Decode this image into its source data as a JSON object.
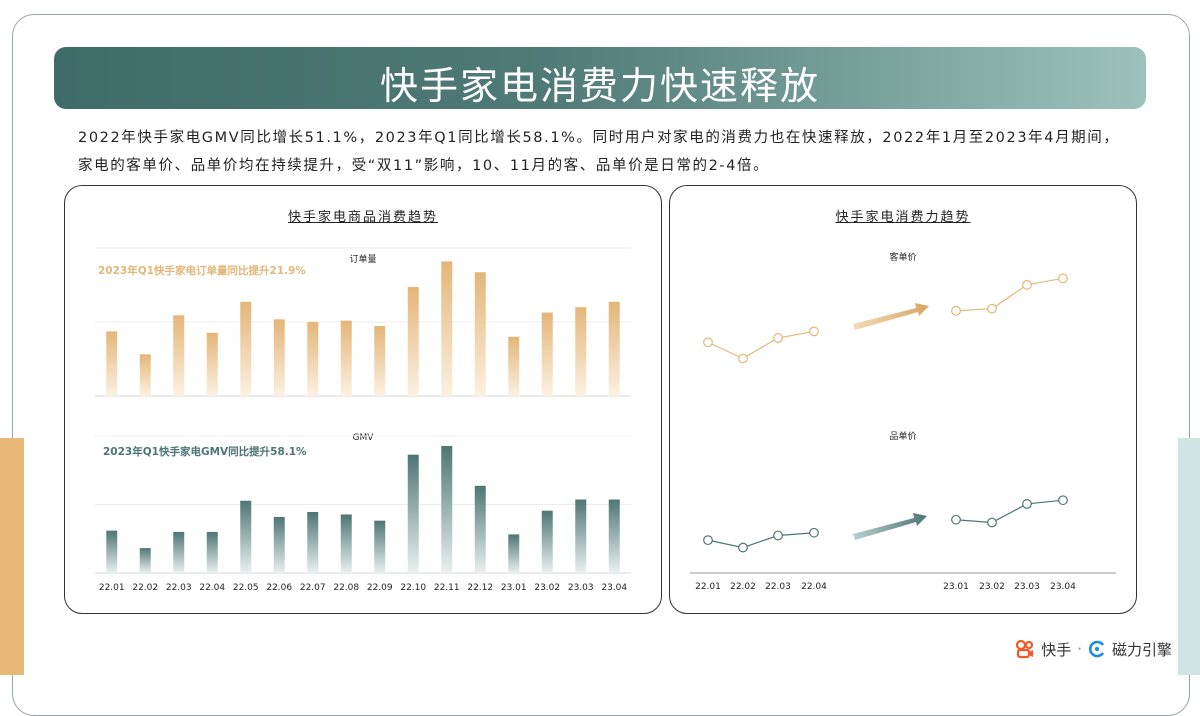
{
  "title": "快手家电消费力快速释放",
  "intro": "2022年快手家电GMV同比增长51.1%，2023年Q1同比增长58.1%。同时用户对家电的消费力也在快速释放，2022年1月至2023年4月期间，家电的客单价、品单价均在持续提升，受“双11”影响，10、11月的客、品单价是日常的2-4倍。",
  "left_panel_title": "快手家电商品消费趋势",
  "right_panel_title": "快手家电消费力趋势",
  "brand": {
    "kuaishou": "快手",
    "separator": "·",
    "engine": "磁力引擎"
  },
  "colors": {
    "gold": "#e3b679",
    "teal": "#4d7673",
    "banner_start": "#3f6b68",
    "banner_end": "#9dc2bc"
  },
  "chart_data": [
    {
      "type": "bar",
      "title": "订单量",
      "annotation": "2023年Q1快手家电订单量同比提升21.9%",
      "categories": [
        "22.01",
        "22.02",
        "22.03",
        "22.04",
        "22.05",
        "22.06",
        "22.07",
        "22.08",
        "22.09",
        "22.10",
        "22.11",
        "22.12",
        "23.01",
        "23.02",
        "23.03",
        "23.04"
      ],
      "values": [
        48,
        31,
        60,
        47,
        70,
        57,
        55,
        56,
        52,
        81,
        100,
        92,
        44,
        62,
        66,
        70
      ],
      "ylim": [
        0,
        110
      ],
      "grid": true
    },
    {
      "type": "bar",
      "title": "GMV",
      "annotation": "2023年Q1快手家电GMV同比提升58.1%",
      "categories": [
        "22.01",
        "22.02",
        "22.03",
        "22.04",
        "22.05",
        "22.06",
        "22.07",
        "22.08",
        "22.09",
        "22.10",
        "22.11",
        "22.12",
        "23.01",
        "23.02",
        "23.03",
        "23.04"
      ],
      "values": [
        34,
        20,
        33,
        33,
        58,
        45,
        49,
        47,
        42,
        95,
        102,
        70,
        31,
        50,
        59,
        59
      ],
      "ylim": [
        0,
        110
      ],
      "grid": true
    },
    {
      "type": "line",
      "title": "客单价",
      "segments": [
        {
          "categories": [
            "22.01",
            "22.02",
            "22.03",
            "22.04"
          ],
          "values": [
            45,
            30,
            49,
            55
          ]
        },
        {
          "categories": [
            "23.01",
            "23.02",
            "23.03",
            "23.04"
          ],
          "values": [
            74,
            76,
            98,
            104
          ]
        }
      ],
      "ylim": [
        0,
        120
      ]
    },
    {
      "type": "line",
      "title": "品单价",
      "segments": [
        {
          "categories": [
            "22.01",
            "22.02",
            "22.03",
            "22.04"
          ],
          "values": [
            58,
            50,
            63,
            66
          ]
        },
        {
          "categories": [
            "23.01",
            "23.02",
            "23.03",
            "23.04"
          ],
          "values": [
            80,
            77,
            97,
            101
          ]
        }
      ],
      "ylim": [
        0,
        140
      ]
    }
  ]
}
